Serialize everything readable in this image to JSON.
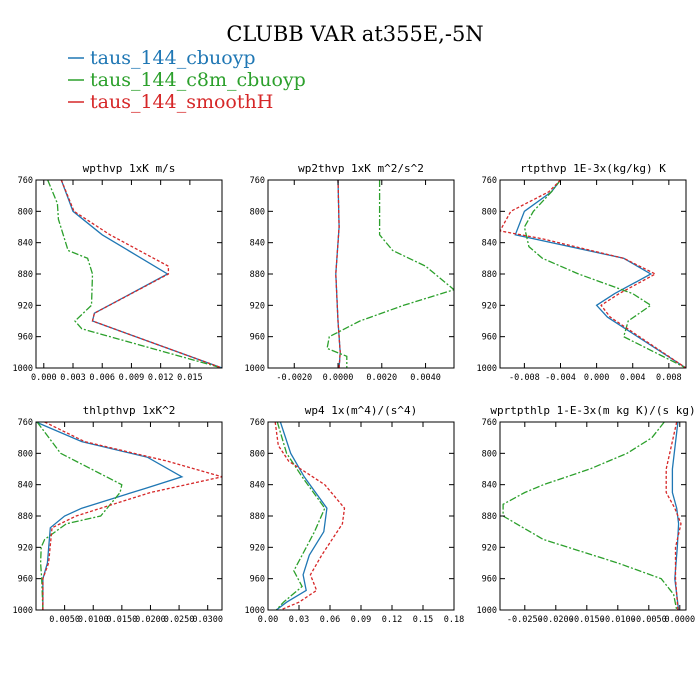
{
  "title": "CLUBB VAR at355E,-5N",
  "legend": [
    {
      "name": "taus_144_cbuoyp",
      "color": "#1f77b4"
    },
    {
      "name": "taus_144_c8m_cbuoyp",
      "color": "#2ca02c"
    },
    {
      "name": "taus_144_smoothH",
      "color": "#d62728"
    }
  ],
  "chart_data": [
    {
      "type": "line",
      "title": "wpthvp  1xK m/s",
      "xlim": [
        -0.0008,
        0.0183
      ],
      "ylim": [
        760,
        1000
      ],
      "xticks": [
        0.0,
        0.003,
        0.006,
        0.009,
        0.012,
        0.015
      ],
      "xtick_labels": [
        "0.000",
        "0.003",
        "0.006",
        "0.009",
        "0.012",
        "0.015"
      ],
      "yticks": [
        760,
        800,
        840,
        880,
        920,
        960,
        1000
      ],
      "series": [
        {
          "name": "taus_144_cbuoyp",
          "y": [
            760,
            800,
            830,
            880,
            930,
            940,
            1000
          ],
          "x": [
            0.0018,
            0.003,
            0.006,
            0.0127,
            0.0052,
            0.005,
            0.0183
          ]
        },
        {
          "name": "taus_144_c8m_cbuoyp",
          "y": [
            760,
            790,
            810,
            850,
            860,
            880,
            920,
            940,
            950,
            1000
          ],
          "x": [
            0.0004,
            0.0014,
            0.0015,
            0.0025,
            0.0045,
            0.005,
            0.0049,
            0.0032,
            0.0039,
            0.0183
          ]
        },
        {
          "name": "taus_144_smoothH",
          "y": [
            760,
            800,
            830,
            870,
            880,
            930,
            940,
            1000
          ],
          "x": [
            0.0018,
            0.0031,
            0.0068,
            0.0128,
            0.0128,
            0.0052,
            0.005,
            0.0183
          ]
        }
      ]
    },
    {
      "type": "line",
      "title": "wp2thvp  1xK m^2/s^2",
      "xlim": [
        -0.0032,
        0.0053
      ],
      "ylim": [
        760,
        1000
      ],
      "xticks": [
        -0.002,
        0.0,
        0.002,
        0.004
      ],
      "xtick_labels": [
        "-0.0020",
        "0.0000",
        "0.0020",
        "0.0040"
      ],
      "yticks": [
        760,
        800,
        840,
        880,
        920,
        960,
        1000
      ],
      "series": [
        {
          "name": "taus_144_cbuoyp",
          "y": [
            760,
            820,
            880,
            940,
            980,
            1000
          ],
          "x": [
            0.0,
            5e-05,
            -0.0001,
            0.0,
            0.0001,
            5e-05
          ]
        },
        {
          "name": "taus_144_c8m_cbuoyp",
          "y": [
            760,
            800,
            830,
            850,
            870,
            900,
            920,
            940,
            960,
            975,
            985,
            1000
          ],
          "x": [
            0.0019,
            0.0019,
            0.0019,
            0.0025,
            0.004,
            0.0053,
            0.003,
            0.001,
            -0.0004,
            -0.0005,
            0.0004,
            0.0004
          ]
        },
        {
          "name": "taus_144_smoothH",
          "y": [
            760,
            820,
            880,
            940,
            980,
            1000
          ],
          "x": [
            0.0,
            5e-05,
            -0.0001,
            0.0,
            0.0001,
            5e-05
          ]
        }
      ]
    },
    {
      "type": "line",
      "title": "rtpthvp  1E-3x(kg/kg) K",
      "xlim": [
        -0.0107,
        0.0099
      ],
      "ylim": [
        760,
        1000
      ],
      "xticks": [
        -0.008,
        -0.004,
        0.0,
        0.004,
        0.008
      ],
      "xtick_labels": [
        "-0.008",
        "-0.004",
        "0.000",
        "0.004",
        "0.008"
      ],
      "yticks": [
        760,
        800,
        840,
        880,
        920,
        960,
        1000
      ],
      "series": [
        {
          "name": "taus_144_cbuoyp",
          "y": [
            760,
            775,
            800,
            830,
            860,
            880,
            905,
            920,
            935,
            1000
          ],
          "x": [
            -0.004,
            -0.005,
            -0.008,
            -0.009,
            0.003,
            0.006,
            0.002,
            0.0,
            0.0012,
            0.0099
          ]
        },
        {
          "name": "taus_144_c8m_cbuoyp",
          "y": [
            760,
            775,
            800,
            820,
            845,
            860,
            880,
            905,
            920,
            940,
            960,
            1000
          ],
          "x": [
            -0.004,
            -0.005,
            -0.007,
            -0.008,
            -0.0075,
            -0.006,
            -0.002,
            0.004,
            0.006,
            0.0035,
            0.003,
            0.0099
          ]
        },
        {
          "name": "taus_144_smoothH",
          "y": [
            760,
            775,
            800,
            825,
            835,
            860,
            880,
            905,
            920,
            935,
            1000
          ],
          "x": [
            -0.004,
            -0.0053,
            -0.0095,
            -0.0107,
            -0.006,
            0.003,
            0.0065,
            0.0025,
            0.0005,
            0.0015,
            0.0099
          ]
        }
      ]
    },
    {
      "type": "line",
      "title": "thlpthvp  1xK^2",
      "xlim": [
        0.0,
        0.0325
      ],
      "ylim": [
        760,
        1000
      ],
      "xticks": [
        0.005,
        0.01,
        0.015,
        0.02,
        0.025,
        0.03
      ],
      "xtick_labels": [
        "0.0050",
        "0.0100",
        "0.0150",
        "0.0200",
        "0.0250",
        "0.0300"
      ],
      "yticks": [
        760,
        800,
        840,
        880,
        920,
        960,
        1000
      ],
      "series": [
        {
          "name": "taus_144_cbuoyp",
          "y": [
            760,
            785,
            805,
            830,
            845,
            870,
            880,
            895,
            940,
            960,
            1000
          ],
          "x": [
            0.0,
            0.008,
            0.0195,
            0.0255,
            0.019,
            0.008,
            0.005,
            0.0025,
            0.002,
            0.0012,
            0.0012
          ]
        },
        {
          "name": "taus_144_c8m_cbuoyp",
          "y": [
            760,
            800,
            840,
            850,
            880,
            890,
            910,
            920,
            940,
            960,
            1000
          ],
          "x": [
            0.0002,
            0.0043,
            0.015,
            0.0147,
            0.0113,
            0.0053,
            0.0015,
            0.0009,
            0.0008,
            0.001,
            0.0012
          ]
        },
        {
          "name": "taus_144_smoothH",
          "y": [
            760,
            785,
            810,
            830,
            850,
            880,
            895,
            940,
            960,
            1000
          ],
          "x": [
            0.0015,
            0.0085,
            0.023,
            0.0325,
            0.02,
            0.007,
            0.0028,
            0.0022,
            0.0012,
            0.0012
          ]
        }
      ]
    },
    {
      "type": "line",
      "title": "wp4  1x(m^4)/(s^4)",
      "xlim": [
        0.0,
        0.18
      ],
      "ylim": [
        760,
        1000
      ],
      "xticks": [
        0.0,
        0.03,
        0.06,
        0.09,
        0.12,
        0.15,
        0.18
      ],
      "xtick_labels": [
        "0.00",
        "0.03",
        "0.06",
        "0.09",
        "0.12",
        "0.15",
        "0.18"
      ],
      "yticks": [
        760,
        800,
        840,
        880,
        920,
        960,
        1000
      ],
      "series": [
        {
          "name": "taus_144_cbuoyp",
          "y": [
            760,
            800,
            830,
            870,
            900,
            930,
            955,
            975,
            990,
            1000
          ],
          "x": [
            0.012,
            0.022,
            0.035,
            0.057,
            0.054,
            0.04,
            0.034,
            0.037,
            0.018,
            0.008
          ]
        },
        {
          "name": "taus_144_c8m_cbuoyp",
          "y": [
            760,
            800,
            830,
            870,
            900,
            930,
            950,
            970,
            990,
            1000
          ],
          "x": [
            0.009,
            0.018,
            0.033,
            0.055,
            0.045,
            0.033,
            0.025,
            0.033,
            0.015,
            0.008
          ]
        },
        {
          "name": "taus_144_smoothH",
          "y": [
            760,
            790,
            810,
            840,
            870,
            890,
            930,
            955,
            975,
            990,
            1000
          ],
          "x": [
            0.007,
            0.01,
            0.02,
            0.055,
            0.074,
            0.072,
            0.052,
            0.041,
            0.047,
            0.03,
            0.012
          ]
        }
      ]
    },
    {
      "type": "line",
      "title": "wprtpthlp  1-E-3x(m kg K)/(s kg)",
      "xlim": [
        -0.029,
        0.001
      ],
      "ylim": [
        760,
        1000
      ],
      "xticks": [
        -0.025,
        -0.02,
        -0.015,
        -0.01,
        -0.005,
        0.0
      ],
      "xtick_labels": [
        "-0.0250",
        "-0.0200",
        "-0.0150",
        "-0.0100",
        "-0.0050",
        "0.0000"
      ],
      "yticks": [
        760,
        800,
        840,
        880,
        920,
        960,
        1000
      ],
      "series": [
        {
          "name": "taus_144_cbuoyp",
          "y": [
            760,
            820,
            850,
            870,
            890,
            920,
            960,
            1000
          ],
          "x": [
            -0.0003,
            -0.0012,
            -0.0012,
            -0.0005,
            -0.0002,
            -0.0004,
            -0.0008,
            -0.0002
          ]
        },
        {
          "name": "taus_144_c8m_cbuoyp",
          "y": [
            760,
            780,
            800,
            820,
            840,
            850,
            865,
            880,
            910,
            940,
            960,
            980,
            1000
          ],
          "x": [
            -0.0025,
            -0.0045,
            -0.0085,
            -0.0145,
            -0.022,
            -0.025,
            -0.0285,
            -0.0285,
            -0.022,
            -0.01,
            -0.003,
            -0.001,
            -0.0005
          ]
        },
        {
          "name": "taus_144_smoothH",
          "y": [
            760,
            820,
            850,
            870,
            890,
            920,
            960,
            1000
          ],
          "x": [
            -0.0005,
            -0.0022,
            -0.0022,
            -0.0008,
            0.0002,
            -0.0007,
            -0.0007,
            -0.0003
          ]
        }
      ]
    }
  ]
}
